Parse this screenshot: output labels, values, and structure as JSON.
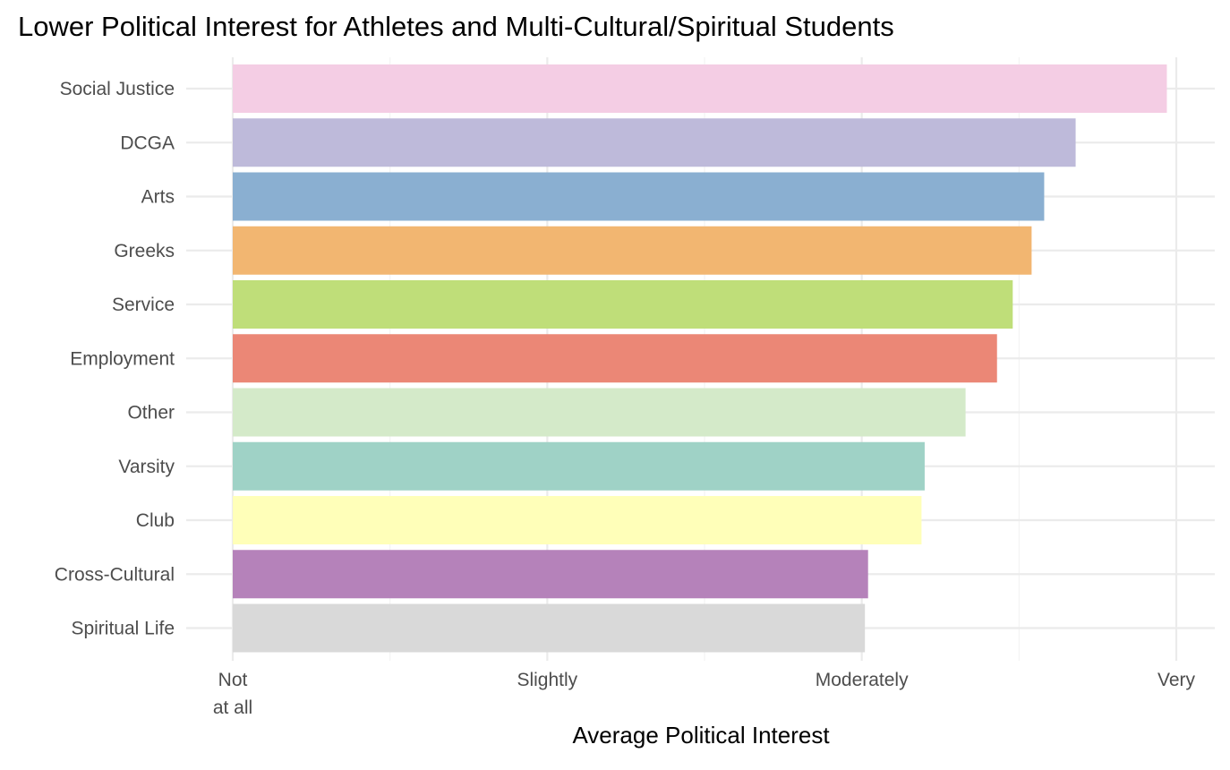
{
  "chart_data": {
    "type": "bar",
    "orientation": "horizontal",
    "title": "Lower Political Interest for Athletes and Multi-Cultural/Spiritual Students",
    "xlabel": "Average Political Interest",
    "ylabel": "",
    "xlim": [
      1,
      4
    ],
    "x_ticks": [
      {
        "value": 1,
        "label": "Not\nat all"
      },
      {
        "value": 2,
        "label": "Slightly"
      },
      {
        "value": 3,
        "label": "Moderately"
      },
      {
        "value": 4,
        "label": "Very"
      }
    ],
    "grid": true,
    "legend": "none",
    "categories": [
      "Social Justice",
      "DCGA",
      "Arts",
      "Greeks",
      "Service",
      "Employment",
      "Other",
      "Varsity",
      "Club",
      "Cross-Cultural",
      "Spiritual Life"
    ],
    "values": [
      3.97,
      3.68,
      3.58,
      3.54,
      3.48,
      3.43,
      3.33,
      3.2,
      3.19,
      3.02,
      3.01
    ],
    "colors": [
      "#f4cde4",
      "#bebada",
      "#8aafd1",
      "#f2b671",
      "#bfde79",
      "#eb8776",
      "#d4eac9",
      "#9fd2c6",
      "#ffffb9",
      "#b582ba",
      "#d9d9d9"
    ]
  }
}
